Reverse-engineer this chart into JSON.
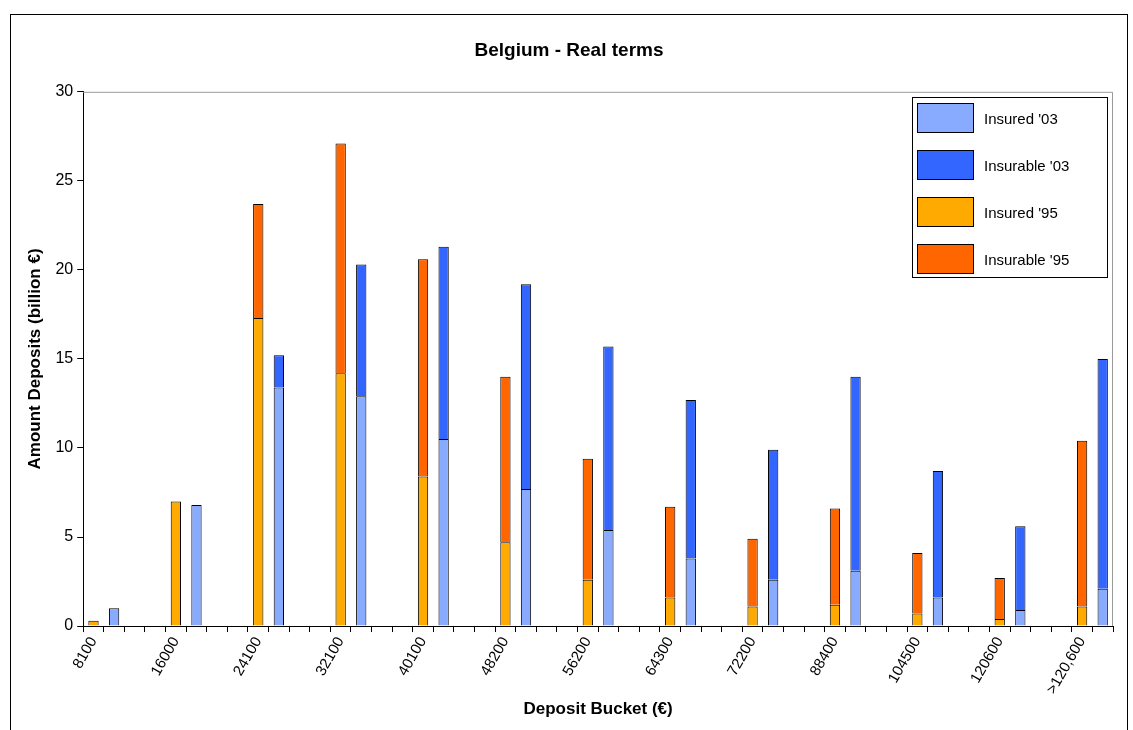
{
  "chart_data": {
    "type": "bar",
    "title": "Belgium - Real terms",
    "xlabel": "Deposit Bucket (€)",
    "ylabel": "Amount Deposits (billion €)",
    "categories": [
      "8100",
      null,
      null,
      null,
      "16000",
      null,
      null,
      null,
      "24100",
      null,
      null,
      null,
      "32100",
      null,
      null,
      null,
      "40100",
      null,
      null,
      null,
      "48200",
      null,
      null,
      null,
      "56200",
      null,
      null,
      null,
      "64300",
      null,
      null,
      null,
      "72200",
      null,
      null,
      null,
      "88400",
      null,
      null,
      null,
      "104500",
      null,
      null,
      null,
      "120600",
      null,
      null,
      null,
      ">120,600",
      null
    ],
    "series": [
      {
        "name": "Insured '03",
        "color": "#88aaff",
        "values": [
          null,
          1.0,
          null,
          null,
          null,
          6.8,
          null,
          null,
          null,
          13.4,
          null,
          null,
          null,
          12.9,
          null,
          null,
          null,
          10.5,
          null,
          null,
          null,
          7.7,
          null,
          null,
          null,
          5.4,
          null,
          null,
          null,
          3.8,
          null,
          null,
          null,
          2.6,
          null,
          null,
          null,
          3.1,
          null,
          null,
          null,
          1.6,
          null,
          null,
          null,
          0.9,
          null,
          null,
          null,
          2.1
        ]
      },
      {
        "name": "Insurable '03",
        "color": "#3366ff",
        "values": [
          null,
          0,
          null,
          null,
          null,
          0,
          null,
          null,
          null,
          1.8,
          null,
          null,
          null,
          7.4,
          null,
          null,
          null,
          10.8,
          null,
          null,
          null,
          11.5,
          null,
          null,
          null,
          10.3,
          null,
          null,
          null,
          8.9,
          null,
          null,
          null,
          7.3,
          null,
          null,
          null,
          10.9,
          null,
          null,
          null,
          7.1,
          null,
          null,
          null,
          4.7,
          null,
          null,
          null,
          12.9
        ]
      },
      {
        "name": "Insured '95",
        "color": "#ffaa00",
        "values": [
          0.3,
          null,
          null,
          null,
          7.0,
          null,
          null,
          null,
          17.3,
          null,
          null,
          null,
          14.2,
          null,
          null,
          null,
          8.4,
          null,
          null,
          null,
          4.7,
          null,
          null,
          null,
          2.6,
          null,
          null,
          null,
          1.6,
          null,
          null,
          null,
          1.1,
          null,
          null,
          null,
          1.2,
          null,
          null,
          null,
          0.7,
          null,
          null,
          null,
          0.4,
          null,
          null,
          null,
          1.1,
          null
        ]
      },
      {
        "name": "Insurable '95",
        "color": "#ff6600",
        "values": [
          0,
          null,
          null,
          null,
          0,
          null,
          null,
          null,
          6.4,
          null,
          null,
          null,
          12.9,
          null,
          null,
          null,
          12.2,
          null,
          null,
          null,
          9.3,
          null,
          null,
          null,
          6.8,
          null,
          null,
          null,
          5.1,
          null,
          null,
          null,
          3.8,
          null,
          null,
          null,
          5.4,
          null,
          null,
          null,
          3.4,
          null,
          null,
          null,
          2.3,
          null,
          null,
          null,
          9.3,
          null
        ]
      }
    ],
    "stacked": true,
    "ylim": [
      0,
      30
    ],
    "yticks": [
      0,
      5,
      10,
      15,
      20,
      25,
      30
    ],
    "grid": false,
    "legend": "top right"
  }
}
